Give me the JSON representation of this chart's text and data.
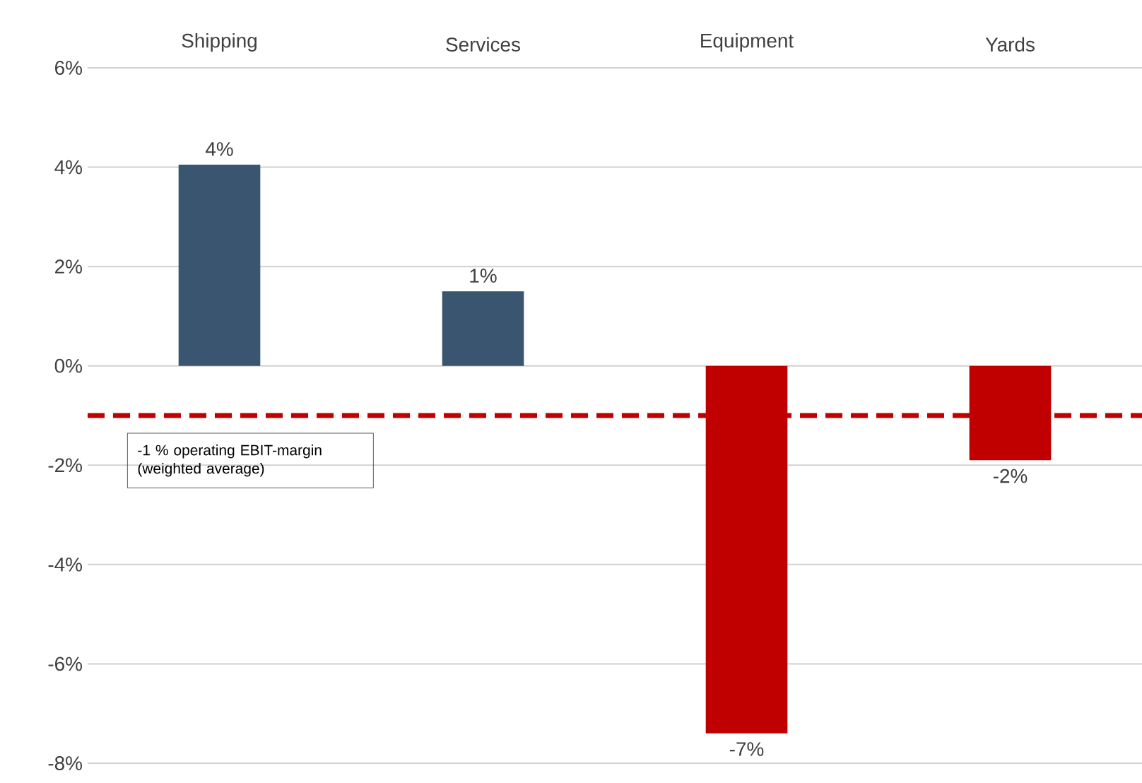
{
  "chart_data": {
    "type": "bar",
    "categories": [
      "Shipping",
      "Services",
      "Equipment",
      "Yards"
    ],
    "values": [
      4.05,
      1.5,
      -7.4,
      -1.9
    ],
    "colors": [
      "#3a5570",
      "#3a5570",
      "#c00000",
      "#c00000"
    ],
    "value_labels": [
      "4%",
      "1%",
      "-7%",
      "-2%"
    ],
    "ylim": [
      -8,
      6
    ],
    "yticks": [
      {
        "value": 6,
        "label": "6%"
      },
      {
        "value": 4,
        "label": "4%"
      },
      {
        "value": 2,
        "label": "2%"
      },
      {
        "value": 0,
        "label": "0%"
      },
      {
        "value": -2,
        "label": "-2%"
      },
      {
        "value": -4,
        "label": "-4%"
      },
      {
        "value": -6,
        "label": "-6%"
      },
      {
        "value": -8,
        "label": "-8%"
      }
    ],
    "grid": "y",
    "ref_lines": [
      {
        "axis": "y",
        "value": -1,
        "label": "-1 % operating EBIT-margin (weighted average)",
        "color": "#c00000",
        "line_style": "dashed"
      }
    ]
  }
}
